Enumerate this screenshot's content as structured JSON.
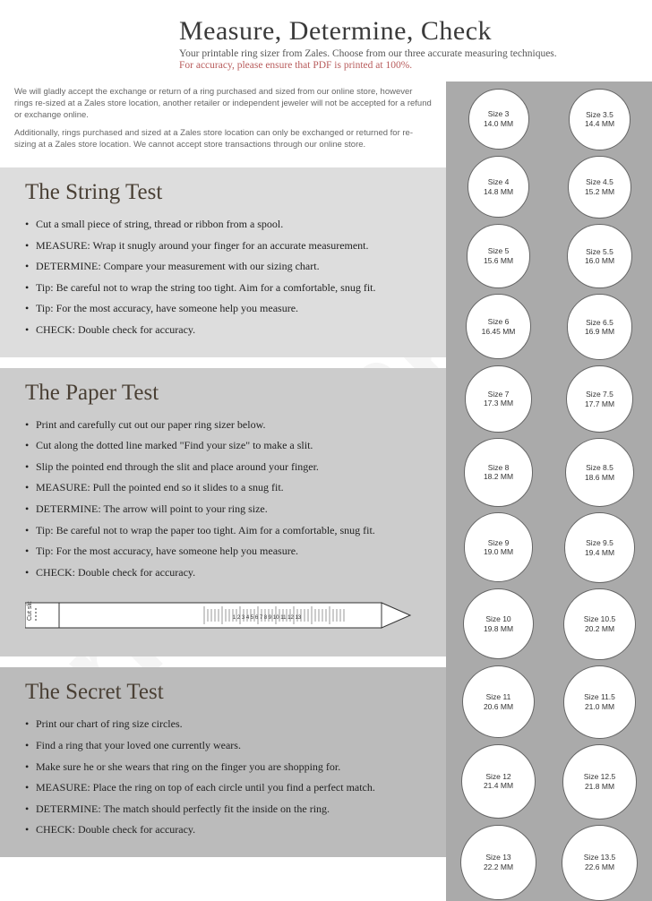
{
  "header": {
    "title": "Measure, Determine, Check",
    "subtitle": "Your printable ring sizer from Zales. Choose from our three accurate measuring techniques.",
    "warning": "For accuracy, please ensure that PDF is printed at 100%."
  },
  "disclaimer": {
    "p1": "We will gladly accept the exchange or return of a ring purchased and sized from our online store, however rings re-sized at a Zales store location, another retailer or independent jeweler will not be accepted for a refund or exchange online.",
    "p2": "Additionally, rings purchased and sized at a Zales store location can only be exchanged or returned for re-sizing at a Zales store location. We cannot accept store transactions through our online store."
  },
  "sections": {
    "string": {
      "title": "The String Test",
      "items": [
        "Cut a small piece of string, thread or ribbon from a spool.",
        "MEASURE: Wrap it snugly around your finger for an accurate measurement.",
        "DETERMINE: Compare your measurement with our sizing chart.",
        "Tip: Be careful not to wrap the string too tight. Aim for a comfortable, snug fit.",
        "Tip: For the most accuracy, have someone help you measure.",
        "CHECK: Double check for accuracy."
      ]
    },
    "paper": {
      "title": "The Paper Test",
      "items": [
        "Print and carefully cut out our paper ring sizer below.",
        "Cut along the dotted line marked \"Find your size\" to make a slit.",
        "Slip the pointed end through the slit and place around your finger.",
        "MEASURE: Pull the pointed end so it slides to a snug fit.",
        "DETERMINE: The arrow will point to your ring size.",
        "Tip: Be careful not to wrap the paper too tight. Aim for a comfortable, snug fit.",
        "Tip: For the most accuracy, have someone help you measure.",
        "CHECK: Double check for accuracy."
      ],
      "ruler_label": "Cut slit",
      "ruler_ticks": "1 2 3 4 5 6 7 8 9 10 11 12 13"
    },
    "secret": {
      "title": "The Secret Test",
      "items": [
        "Print our chart of ring size circles.",
        "Find a ring that your loved one currently wears.",
        "Make sure he or she wears that ring on the finger you are shopping for.",
        "MEASURE: Place the ring on top of each circle until you find a perfect match.",
        "DETERMINE: The match should perfectly fit the inside on the ring.",
        "CHECK: Double check for accuracy."
      ]
    }
  },
  "circles": [
    {
      "size": "Size 3",
      "mm": "14.0 MM"
    },
    {
      "size": "Size 3.5",
      "mm": "14.4 MM"
    },
    {
      "size": "Size 4",
      "mm": "14.8 MM"
    },
    {
      "size": "Size 4.5",
      "mm": "15.2 MM"
    },
    {
      "size": "Size 5",
      "mm": "15.6 MM"
    },
    {
      "size": "Size 5.5",
      "mm": "16.0 MM"
    },
    {
      "size": "Size 6",
      "mm": "16.45 MM"
    },
    {
      "size": "Size 6.5",
      "mm": "16.9 MM"
    },
    {
      "size": "Size 7",
      "mm": "17.3 MM"
    },
    {
      "size": "Size 7.5",
      "mm": "17.7 MM"
    },
    {
      "size": "Size 8",
      "mm": "18.2 MM"
    },
    {
      "size": "Size 8.5",
      "mm": "18.6 MM"
    },
    {
      "size": "Size 9",
      "mm": "19.0 MM"
    },
    {
      "size": "Size 9.5",
      "mm": "19.4 MM"
    },
    {
      "size": "Size 10",
      "mm": "19.8 MM"
    },
    {
      "size": "Size 10.5",
      "mm": "20.2 MM"
    },
    {
      "size": "Size 11",
      "mm": "20.6 MM"
    },
    {
      "size": "Size 11.5",
      "mm": "21.0 MM"
    },
    {
      "size": "Size 12",
      "mm": "21.4 MM"
    },
    {
      "size": "Size 12.5",
      "mm": "21.8 MM"
    },
    {
      "size": "Size 13",
      "mm": "22.2 MM"
    },
    {
      "size": "Size 13.5",
      "mm": "22.6 MM"
    }
  ],
  "watermark": "formsbank.com",
  "colors": {
    "title": "#3a3a3a",
    "warn": "#b85c5c",
    "section_head": "#4a4035",
    "right_bg": "#aaaaaa",
    "bg_light": "#dddddd",
    "bg_mid": "#cccccc",
    "bg_darker": "#bbbbbb"
  }
}
